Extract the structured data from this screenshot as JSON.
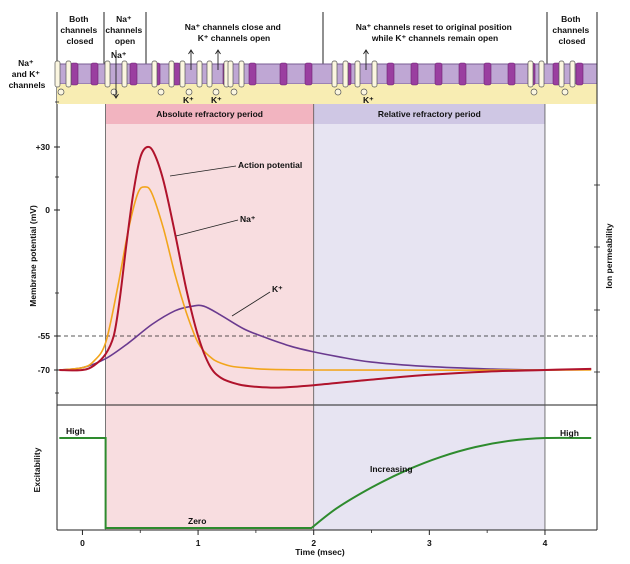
{
  "phases": [
    {
      "lines": [
        "Both",
        "channels",
        "closed"
      ]
    },
    {
      "lines": [
        "Na⁺",
        "channels",
        "open"
      ]
    },
    {
      "lines": [
        "Na⁺ channels close and",
        "K⁺ channels open"
      ]
    },
    {
      "lines": [
        "Na⁺ channels reset to original position",
        "while K⁺ channels remain open"
      ]
    },
    {
      "lines": [
        "Both",
        "channels",
        "closed"
      ]
    }
  ],
  "membrane": {
    "side_label": [
      "Na⁺",
      "and K⁺",
      "channels"
    ],
    "ion_labels": {
      "na": "Na⁺",
      "k": "K⁺"
    }
  },
  "periods": {
    "absolute": "Absolute refractory period",
    "relative": "Relative refractory period"
  },
  "chart_data": [
    {
      "type": "line",
      "title": "",
      "xlabel": "Time (msec)",
      "ylabel": "Membrane potential (mV)",
      "ylabel_right": "Ion permeability",
      "xlim": [
        -0.22,
        4.45
      ],
      "ylim": [
        -90,
        40
      ],
      "yticks": [
        30,
        0,
        -55,
        -70
      ],
      "ytick_labels": [
        "+30",
        "0",
        "-55",
        "-70"
      ],
      "threshold": -55,
      "shaded_regions": [
        {
          "name": "Absolute refractory period",
          "x": [
            0.2,
            2.0
          ],
          "color": "#f8dde0"
        },
        {
          "name": "Relative refractory period",
          "x": [
            2.0,
            4.0
          ],
          "color": "#e7e4f2"
        }
      ],
      "series": [
        {
          "name": "Action potential",
          "color": "#b0132c",
          "points": [
            [
              -0.2,
              -70
            ],
            [
              0.0,
              -70
            ],
            [
              0.1,
              -68
            ],
            [
              0.2,
              -63
            ],
            [
              0.27,
              -55
            ],
            [
              0.32,
              -40
            ],
            [
              0.38,
              -15
            ],
            [
              0.44,
              8
            ],
            [
              0.5,
              25
            ],
            [
              0.56,
              30
            ],
            [
              0.62,
              27
            ],
            [
              0.7,
              14
            ],
            [
              0.8,
              -10
            ],
            [
              0.9,
              -35
            ],
            [
              1.0,
              -55
            ],
            [
              1.1,
              -68
            ],
            [
              1.2,
              -75
            ],
            [
              1.35,
              -79
            ],
            [
              1.5,
              -80.5
            ],
            [
              1.7,
              -81
            ],
            [
              2.0,
              -79.5
            ],
            [
              2.5,
              -76
            ],
            [
              3.0,
              -73
            ],
            [
              3.5,
              -71
            ],
            [
              4.0,
              -70
            ],
            [
              4.4,
              -69.5
            ]
          ]
        },
        {
          "name": "Na⁺",
          "color": "#f2a51c",
          "points": [
            [
              -0.2,
              -70
            ],
            [
              0.0,
              -69
            ],
            [
              0.1,
              -66
            ],
            [
              0.2,
              -58
            ],
            [
              0.3,
              -35
            ],
            [
              0.4,
              -8
            ],
            [
              0.48,
              8
            ],
            [
              0.54,
              11
            ],
            [
              0.6,
              8
            ],
            [
              0.7,
              -8
            ],
            [
              0.8,
              -28
            ],
            [
              0.9,
              -45
            ],
            [
              1.0,
              -58
            ],
            [
              1.1,
              -64
            ],
            [
              1.2,
              -67
            ],
            [
              1.4,
              -69
            ],
            [
              2.0,
              -70
            ],
            [
              4.4,
              -70
            ]
          ]
        },
        {
          "name": "K⁺",
          "color": "#6a3a8f",
          "points": [
            [
              -0.2,
              -70
            ],
            [
              0.0,
              -69
            ],
            [
              0.2,
              -65
            ],
            [
              0.4,
              -58
            ],
            [
              0.6,
              -50
            ],
            [
              0.8,
              -44
            ],
            [
              0.95,
              -42
            ],
            [
              1.05,
              -42
            ],
            [
              1.2,
              -46
            ],
            [
              1.4,
              -52
            ],
            [
              1.6,
              -56
            ],
            [
              1.8,
              -59.5
            ],
            [
              2.0,
              -62
            ],
            [
              2.2,
              -64
            ],
            [
              2.5,
              -66.5
            ],
            [
              3.0,
              -68.5
            ],
            [
              3.5,
              -69.5
            ],
            [
              4.0,
              -70
            ],
            [
              4.4,
              -69.5
            ]
          ]
        }
      ],
      "annotations": [
        "Action potential",
        "Na⁺",
        "K⁺"
      ]
    },
    {
      "type": "line",
      "title": "",
      "xlabel": "Time (msec)",
      "ylabel": "Excitability",
      "xlim": [
        -0.22,
        4.45
      ],
      "xticks": [
        0,
        1,
        2,
        3,
        4
      ],
      "xtick_labels": [
        "0",
        "1",
        "2",
        "3",
        "4"
      ],
      "ylim": [
        0,
        1
      ],
      "series": [
        {
          "name": "Excitability",
          "color": "#2e8b2e",
          "points": [
            [
              -0.2,
              1
            ],
            [
              0.2,
              1
            ],
            [
              0.2,
              0
            ],
            [
              1.98,
              0
            ],
            [
              2.2,
              0.22
            ],
            [
              2.5,
              0.45
            ],
            [
              2.8,
              0.64
            ],
            [
              3.1,
              0.79
            ],
            [
              3.4,
              0.9
            ],
            [
              3.7,
              0.97
            ],
            [
              4.0,
              1
            ],
            [
              4.4,
              1
            ]
          ]
        }
      ],
      "annotations": [
        "High",
        "Zero",
        "Increasing",
        "High"
      ]
    }
  ]
}
